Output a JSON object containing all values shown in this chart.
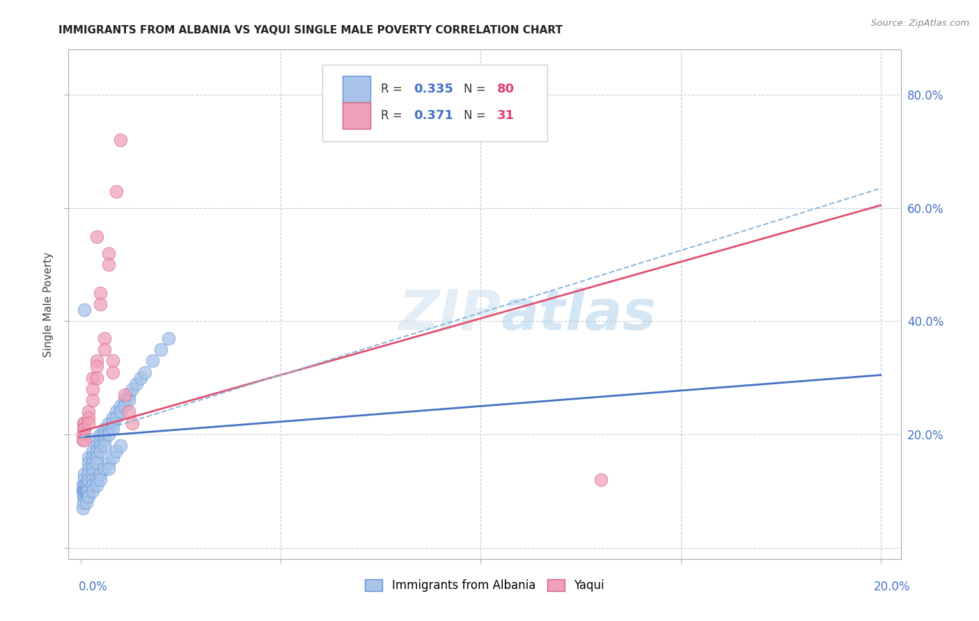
{
  "title": "IMMIGRANTS FROM ALBANIA VS YAQUI SINGLE MALE POVERTY CORRELATION CHART",
  "source": "Source: ZipAtlas.com",
  "ylabel": "Single Male Poverty",
  "color_albania": "#a8c4e8",
  "color_yaqui": "#f0a0b8",
  "color_line_albania": "#4472c4",
  "color_line_yaqui": "#e05070",
  "color_dashed": "#a0c0e0",
  "watermark": "ZIPatlas",
  "legend_r1": "0.335",
  "legend_n1": "80",
  "legend_r2": "0.371",
  "legend_n2": "31",
  "xlim": [
    0.0,
    0.2
  ],
  "ylim": [
    -0.02,
    0.88
  ],
  "albania_x": [
    0.0005,
    0.0006,
    0.0007,
    0.0008,
    0.0009,
    0.001,
    0.001,
    0.001,
    0.001,
    0.001,
    0.0012,
    0.0013,
    0.0014,
    0.0015,
    0.0016,
    0.0017,
    0.0018,
    0.002,
    0.002,
    0.002,
    0.002,
    0.002,
    0.003,
    0.003,
    0.003,
    0.003,
    0.003,
    0.003,
    0.004,
    0.004,
    0.004,
    0.004,
    0.004,
    0.005,
    0.005,
    0.005,
    0.005,
    0.006,
    0.006,
    0.006,
    0.006,
    0.007,
    0.007,
    0.007,
    0.008,
    0.008,
    0.008,
    0.009,
    0.009,
    0.01,
    0.01,
    0.011,
    0.011,
    0.012,
    0.012,
    0.013,
    0.014,
    0.015,
    0.016,
    0.018,
    0.02,
    0.022,
    0.0005,
    0.0008,
    0.001,
    0.0015,
    0.002,
    0.002,
    0.003,
    0.003,
    0.004,
    0.004,
    0.005,
    0.005,
    0.006,
    0.007,
    0.007,
    0.008,
    0.009,
    0.01
  ],
  "albania_y": [
    0.1,
    0.11,
    0.1,
    0.09,
    0.1,
    0.13,
    0.12,
    0.11,
    0.1,
    0.09,
    0.11,
    0.1,
    0.09,
    0.1,
    0.11,
    0.1,
    0.09,
    0.16,
    0.15,
    0.14,
    0.13,
    0.12,
    0.17,
    0.16,
    0.15,
    0.14,
    0.13,
    0.12,
    0.19,
    0.18,
    0.17,
    0.16,
    0.15,
    0.2,
    0.19,
    0.18,
    0.17,
    0.21,
    0.2,
    0.19,
    0.18,
    0.22,
    0.21,
    0.2,
    0.23,
    0.22,
    0.21,
    0.24,
    0.23,
    0.25,
    0.24,
    0.26,
    0.25,
    0.27,
    0.26,
    0.28,
    0.29,
    0.3,
    0.31,
    0.33,
    0.35,
    0.37,
    0.07,
    0.08,
    0.42,
    0.08,
    0.1,
    0.09,
    0.11,
    0.1,
    0.12,
    0.11,
    0.13,
    0.12,
    0.14,
    0.15,
    0.14,
    0.16,
    0.17,
    0.18
  ],
  "yaqui_x": [
    0.0005,
    0.0006,
    0.0007,
    0.0008,
    0.001,
    0.001,
    0.001,
    0.002,
    0.002,
    0.002,
    0.003,
    0.003,
    0.003,
    0.004,
    0.004,
    0.004,
    0.005,
    0.005,
    0.006,
    0.006,
    0.007,
    0.007,
    0.008,
    0.008,
    0.009,
    0.01,
    0.011,
    0.012,
    0.013,
    0.13,
    0.004
  ],
  "yaqui_y": [
    0.2,
    0.19,
    0.22,
    0.21,
    0.22,
    0.21,
    0.19,
    0.24,
    0.23,
    0.22,
    0.3,
    0.28,
    0.26,
    0.33,
    0.32,
    0.3,
    0.45,
    0.43,
    0.37,
    0.35,
    0.52,
    0.5,
    0.33,
    0.31,
    0.63,
    0.72,
    0.27,
    0.24,
    0.22,
    0.12,
    0.55
  ],
  "albania_trendline_x": [
    0.0,
    0.2
  ],
  "albania_trendline_y": [
    0.195,
    0.305
  ],
  "yaqui_trendline_x": [
    0.0,
    0.2
  ],
  "yaqui_trendline_y": [
    0.205,
    0.605
  ],
  "dashed_trendline_x": [
    0.0,
    0.2
  ],
  "dashed_trendline_y": [
    0.195,
    0.635
  ]
}
